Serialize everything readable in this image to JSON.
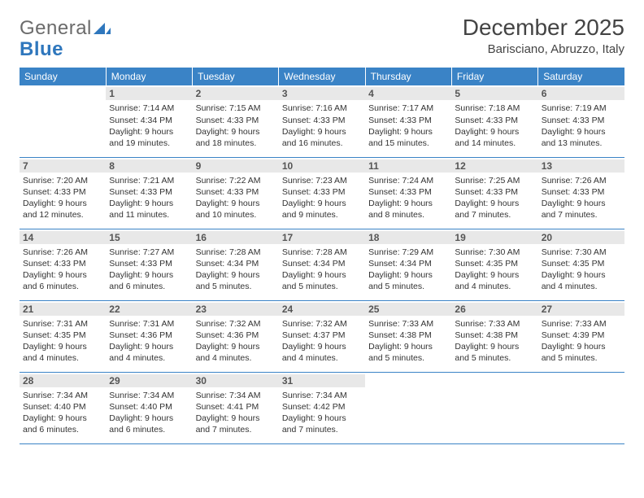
{
  "logo": {
    "line1": "General",
    "line2": "Blue"
  },
  "title": "December 2025",
  "location": "Barisciano, Abruzzo, Italy",
  "header_bg": "#3a83c6",
  "day_headers": [
    "Sunday",
    "Monday",
    "Tuesday",
    "Wednesday",
    "Thursday",
    "Friday",
    "Saturday"
  ],
  "weeks": [
    [
      {
        "n": "",
        "sunrise": "",
        "sunset": "",
        "daylight": ""
      },
      {
        "n": "1",
        "sunrise": "Sunrise: 7:14 AM",
        "sunset": "Sunset: 4:34 PM",
        "daylight": "Daylight: 9 hours and 19 minutes."
      },
      {
        "n": "2",
        "sunrise": "Sunrise: 7:15 AM",
        "sunset": "Sunset: 4:33 PM",
        "daylight": "Daylight: 9 hours and 18 minutes."
      },
      {
        "n": "3",
        "sunrise": "Sunrise: 7:16 AM",
        "sunset": "Sunset: 4:33 PM",
        "daylight": "Daylight: 9 hours and 16 minutes."
      },
      {
        "n": "4",
        "sunrise": "Sunrise: 7:17 AM",
        "sunset": "Sunset: 4:33 PM",
        "daylight": "Daylight: 9 hours and 15 minutes."
      },
      {
        "n": "5",
        "sunrise": "Sunrise: 7:18 AM",
        "sunset": "Sunset: 4:33 PM",
        "daylight": "Daylight: 9 hours and 14 minutes."
      },
      {
        "n": "6",
        "sunrise": "Sunrise: 7:19 AM",
        "sunset": "Sunset: 4:33 PM",
        "daylight": "Daylight: 9 hours and 13 minutes."
      }
    ],
    [
      {
        "n": "7",
        "sunrise": "Sunrise: 7:20 AM",
        "sunset": "Sunset: 4:33 PM",
        "daylight": "Daylight: 9 hours and 12 minutes."
      },
      {
        "n": "8",
        "sunrise": "Sunrise: 7:21 AM",
        "sunset": "Sunset: 4:33 PM",
        "daylight": "Daylight: 9 hours and 11 minutes."
      },
      {
        "n": "9",
        "sunrise": "Sunrise: 7:22 AM",
        "sunset": "Sunset: 4:33 PM",
        "daylight": "Daylight: 9 hours and 10 minutes."
      },
      {
        "n": "10",
        "sunrise": "Sunrise: 7:23 AM",
        "sunset": "Sunset: 4:33 PM",
        "daylight": "Daylight: 9 hours and 9 minutes."
      },
      {
        "n": "11",
        "sunrise": "Sunrise: 7:24 AM",
        "sunset": "Sunset: 4:33 PM",
        "daylight": "Daylight: 9 hours and 8 minutes."
      },
      {
        "n": "12",
        "sunrise": "Sunrise: 7:25 AM",
        "sunset": "Sunset: 4:33 PM",
        "daylight": "Daylight: 9 hours and 7 minutes."
      },
      {
        "n": "13",
        "sunrise": "Sunrise: 7:26 AM",
        "sunset": "Sunset: 4:33 PM",
        "daylight": "Daylight: 9 hours and 7 minutes."
      }
    ],
    [
      {
        "n": "14",
        "sunrise": "Sunrise: 7:26 AM",
        "sunset": "Sunset: 4:33 PM",
        "daylight": "Daylight: 9 hours and 6 minutes."
      },
      {
        "n": "15",
        "sunrise": "Sunrise: 7:27 AM",
        "sunset": "Sunset: 4:33 PM",
        "daylight": "Daylight: 9 hours and 6 minutes."
      },
      {
        "n": "16",
        "sunrise": "Sunrise: 7:28 AM",
        "sunset": "Sunset: 4:34 PM",
        "daylight": "Daylight: 9 hours and 5 minutes."
      },
      {
        "n": "17",
        "sunrise": "Sunrise: 7:28 AM",
        "sunset": "Sunset: 4:34 PM",
        "daylight": "Daylight: 9 hours and 5 minutes."
      },
      {
        "n": "18",
        "sunrise": "Sunrise: 7:29 AM",
        "sunset": "Sunset: 4:34 PM",
        "daylight": "Daylight: 9 hours and 5 minutes."
      },
      {
        "n": "19",
        "sunrise": "Sunrise: 7:30 AM",
        "sunset": "Sunset: 4:35 PM",
        "daylight": "Daylight: 9 hours and 4 minutes."
      },
      {
        "n": "20",
        "sunrise": "Sunrise: 7:30 AM",
        "sunset": "Sunset: 4:35 PM",
        "daylight": "Daylight: 9 hours and 4 minutes."
      }
    ],
    [
      {
        "n": "21",
        "sunrise": "Sunrise: 7:31 AM",
        "sunset": "Sunset: 4:35 PM",
        "daylight": "Daylight: 9 hours and 4 minutes."
      },
      {
        "n": "22",
        "sunrise": "Sunrise: 7:31 AM",
        "sunset": "Sunset: 4:36 PM",
        "daylight": "Daylight: 9 hours and 4 minutes."
      },
      {
        "n": "23",
        "sunrise": "Sunrise: 7:32 AM",
        "sunset": "Sunset: 4:36 PM",
        "daylight": "Daylight: 9 hours and 4 minutes."
      },
      {
        "n": "24",
        "sunrise": "Sunrise: 7:32 AM",
        "sunset": "Sunset: 4:37 PM",
        "daylight": "Daylight: 9 hours and 4 minutes."
      },
      {
        "n": "25",
        "sunrise": "Sunrise: 7:33 AM",
        "sunset": "Sunset: 4:38 PM",
        "daylight": "Daylight: 9 hours and 5 minutes."
      },
      {
        "n": "26",
        "sunrise": "Sunrise: 7:33 AM",
        "sunset": "Sunset: 4:38 PM",
        "daylight": "Daylight: 9 hours and 5 minutes."
      },
      {
        "n": "27",
        "sunrise": "Sunrise: 7:33 AM",
        "sunset": "Sunset: 4:39 PM",
        "daylight": "Daylight: 9 hours and 5 minutes."
      }
    ],
    [
      {
        "n": "28",
        "sunrise": "Sunrise: 7:34 AM",
        "sunset": "Sunset: 4:40 PM",
        "daylight": "Daylight: 9 hours and 6 minutes."
      },
      {
        "n": "29",
        "sunrise": "Sunrise: 7:34 AM",
        "sunset": "Sunset: 4:40 PM",
        "daylight": "Daylight: 9 hours and 6 minutes."
      },
      {
        "n": "30",
        "sunrise": "Sunrise: 7:34 AM",
        "sunset": "Sunset: 4:41 PM",
        "daylight": "Daylight: 9 hours and 7 minutes."
      },
      {
        "n": "31",
        "sunrise": "Sunrise: 7:34 AM",
        "sunset": "Sunset: 4:42 PM",
        "daylight": "Daylight: 9 hours and 7 minutes."
      },
      {
        "n": "",
        "sunrise": "",
        "sunset": "",
        "daylight": ""
      },
      {
        "n": "",
        "sunrise": "",
        "sunset": "",
        "daylight": ""
      },
      {
        "n": "",
        "sunrise": "",
        "sunset": "",
        "daylight": ""
      }
    ]
  ]
}
